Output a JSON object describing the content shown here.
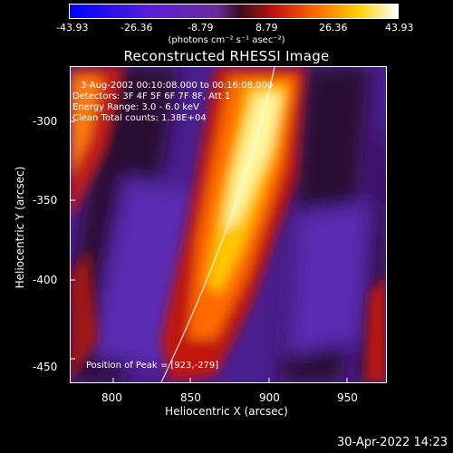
{
  "colorbar": {
    "ticks": [
      "-43.93",
      "-26.36",
      "-8.79",
      "8.79",
      "26.36",
      "43.93"
    ],
    "unit": "(photons cm⁻² s⁻¹ asec⁻²)"
  },
  "title": "Reconstructed RHESSI Image",
  "info": {
    "line1": "3-Aug-2002 00:10:08.000 to 00:16:08.000",
    "line2": "Detectors: 3F 4F 5F 6F 7F 8F, Att 1",
    "line3": "Energy Range: 3.0 - 6.0 keV",
    "line4": "Clean    Total counts: 1.38E+04"
  },
  "peak": "Position of Peak = [923,-279]",
  "axes": {
    "xlabel": "Heliocentric X (arcsec)",
    "ylabel": "Heliocentric Y (arcsec)",
    "xticks": [
      "800",
      "850",
      "900",
      "950"
    ],
    "yticks": [
      "-300",
      "-350",
      "-400",
      "-450"
    ]
  },
  "footer": {
    "date": "30-Apr-2022 14:23"
  },
  "colors": {
    "background": "#000000",
    "limb": "#ffffff"
  }
}
